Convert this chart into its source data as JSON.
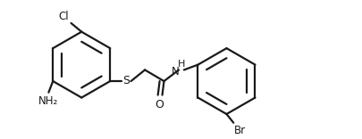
{
  "background": "#ffffff",
  "line_color": "#1a1a1a",
  "label_color": "#1a1a1a",
  "fig_width": 4.06,
  "fig_height": 1.56,
  "dpi": 100,
  "xlim": [
    0.0,
    4.06
  ],
  "ylim": [
    0.0,
    1.56
  ],
  "lw": 1.6
}
